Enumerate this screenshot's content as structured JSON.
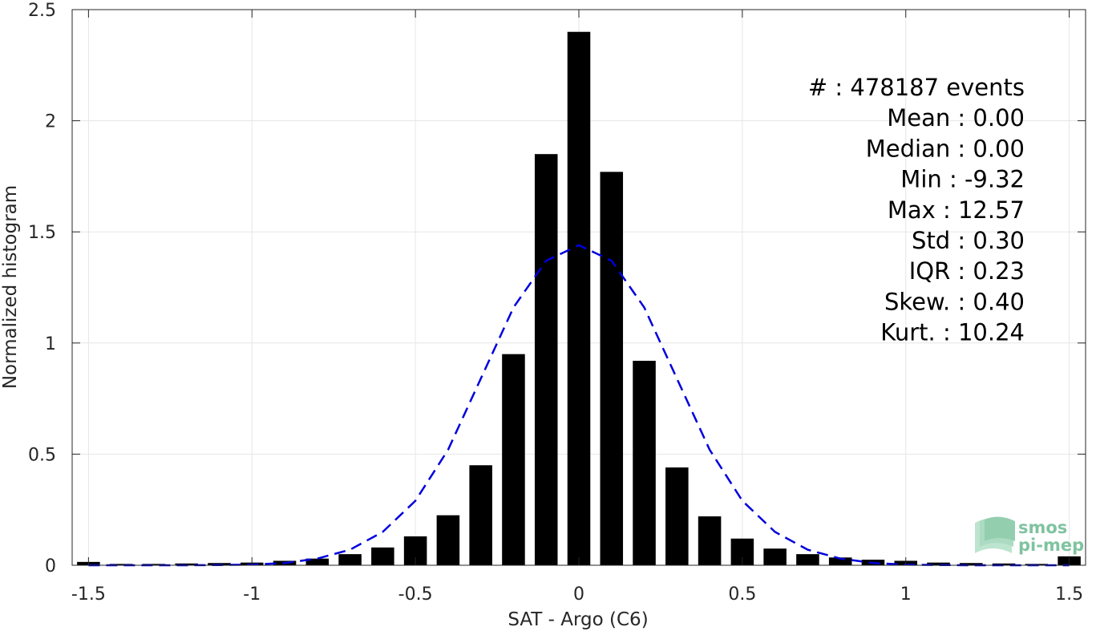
{
  "chart_data": {
    "type": "bar",
    "xlabel": "SAT - Argo (C6)",
    "ylabel": "Normalized histogram",
    "xlim": [
      -1.55,
      1.55
    ],
    "ylim": [
      0,
      2.5
    ],
    "grid": true,
    "bar_width": 0.07,
    "x_ticks": [
      -1.5,
      -1,
      -0.5,
      0,
      0.5,
      1,
      1.5
    ],
    "x_tick_labels": [
      "-1.5",
      "-1",
      "-0.5",
      "0",
      "0.5",
      "1",
      "1.5"
    ],
    "y_ticks": [
      0,
      0.5,
      1,
      1.5,
      2,
      2.5
    ],
    "y_tick_labels": [
      "0",
      "0.5",
      "1",
      "1.5",
      "2",
      "2.5"
    ],
    "bar_color": "#000000",
    "curve_color": "#0000dd",
    "series": [
      {
        "x": [
          -1.5,
          -1.4,
          -1.3,
          -1.2,
          -1.1,
          -1.0,
          -0.9,
          -0.8,
          -0.7,
          -0.6,
          -0.5,
          -0.4,
          -0.3,
          -0.2,
          -0.1,
          0.0,
          0.1,
          0.2,
          0.3,
          0.4,
          0.5,
          0.6,
          0.7,
          0.8,
          0.9,
          1.0,
          1.1,
          1.2,
          1.3,
          1.4,
          1.5
        ],
        "values": [
          0.015,
          0.006,
          0.006,
          0.008,
          0.01,
          0.012,
          0.02,
          0.03,
          0.05,
          0.08,
          0.13,
          0.225,
          0.45,
          0.95,
          1.85,
          2.4,
          1.77,
          0.92,
          0.44,
          0.22,
          0.12,
          0.075,
          0.05,
          0.035,
          0.025,
          0.02,
          0.012,
          0.01,
          0.008,
          0.006,
          0.04
        ]
      },
      {
        "type": "line",
        "style": "dashed",
        "x": [
          -1.5,
          -1.4,
          -1.3,
          -1.2,
          -1.1,
          -1.0,
          -0.9,
          -0.8,
          -0.7,
          -0.6,
          -0.5,
          -0.4,
          -0.3,
          -0.2,
          -0.1,
          0.0,
          0.1,
          0.2,
          0.3,
          0.4,
          0.5,
          0.6,
          0.7,
          0.8,
          0.9,
          1.0,
          1.1,
          1.2,
          1.3,
          1.4,
          1.5
        ],
        "values": [
          0.0,
          0.0,
          0.0,
          0.0,
          0.001,
          0.003,
          0.01,
          0.03,
          0.07,
          0.15,
          0.29,
          0.52,
          0.84,
          1.16,
          1.37,
          1.44,
          1.37,
          1.16,
          0.84,
          0.52,
          0.29,
          0.15,
          0.07,
          0.03,
          0.01,
          0.003,
          0.001,
          0.0,
          0.0,
          0.0,
          0.0
        ]
      }
    ],
    "annotations": [
      "#  : 478187 events",
      "Mean : 0.00",
      "Median : 0.00",
      "Min : -9.32",
      "Max : 12.57",
      "Std : 0.30",
      "IQR : 0.23",
      "Skew. : 0.40",
      "Kurt. : 10.24"
    ]
  },
  "logo": {
    "line1": "smos",
    "line2": "pi-mep",
    "color": "#7fc3a0"
  }
}
